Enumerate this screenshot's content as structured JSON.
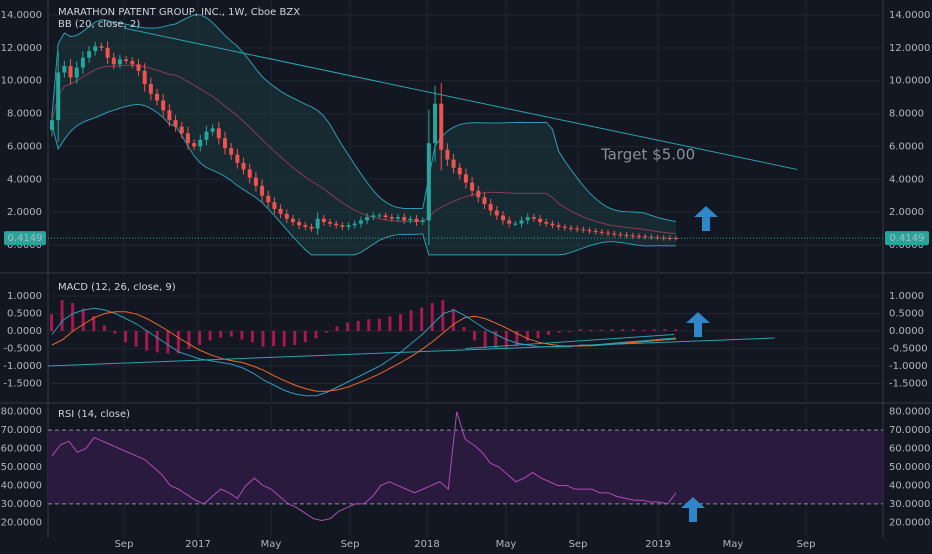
{
  "chart_data": [
    {
      "type": "candlestick",
      "title": "MARATHON PATENT GROUP, INC., 1W, Cboe BZX",
      "indicator": "BB (20, close, 2)",
      "ylim": [
        0,
        14
      ],
      "yticks": [
        "14.0000",
        "12.0000",
        "10.0000",
        "8.0000",
        "6.0000",
        "4.0000",
        "2.0000",
        "0.0000"
      ],
      "last_price": "0.4149",
      "annotation": "Target $5.00",
      "grid": true,
      "colors": {
        "up": "#26a69a",
        "down": "#ef5350",
        "bb_band": "#2e9bb4",
        "bb_basis": "#8b3a55",
        "trendline": "#2aa3b0",
        "arrow": "#2f86c8",
        "last_price_bg": "#26a69a"
      },
      "weekly_close": [
        7.6,
        10.5,
        10.9,
        10.2,
        10.8,
        11.4,
        11.8,
        12.1,
        12.0,
        11.4,
        11.0,
        11.3,
        11.2,
        11.0,
        10.6,
        9.8,
        9.2,
        8.8,
        8.2,
        7.6,
        7.2,
        6.8,
        6.2,
        6.0,
        6.4,
        6.9,
        7.1,
        6.5,
        5.9,
        5.5,
        5.0,
        4.6,
        4.1,
        3.6,
        3.0,
        2.6,
        2.2,
        1.9,
        1.6,
        1.4,
        1.2,
        1.1,
        1.0,
        1.6,
        1.4,
        1.3,
        1.2,
        1.1,
        1.2,
        1.3,
        1.5,
        1.7,
        1.8,
        1.8,
        1.7,
        1.6,
        1.7,
        1.5,
        1.6,
        1.4,
        1.5,
        6.2,
        8.6,
        5.8,
        5.2,
        4.7,
        4.3,
        3.8,
        3.3,
        2.9,
        2.5,
        2.1,
        1.8,
        1.5,
        1.3,
        1.3,
        1.5,
        1.7,
        1.6,
        1.4,
        1.3,
        1.2,
        1.1,
        1.05,
        1.0,
        0.95,
        0.9,
        0.85,
        0.8,
        0.75,
        0.7,
        0.65,
        0.62,
        0.58,
        0.55,
        0.52,
        0.5,
        0.47,
        0.45,
        0.43,
        0.42,
        0.4149
      ]
    },
    {
      "type": "line",
      "title": "MACD (12, 26, close, 9)",
      "ylim": [
        -2.0,
        1.2
      ],
      "yticks": [
        "1.0000",
        "0.5000",
        "0.0000",
        "-0.5000",
        "-1.0000",
        "-1.5000"
      ],
      "series": [
        {
          "name": "MACD",
          "color": "#2e9bb4",
          "values": [
            -0.1,
            0.3,
            0.5,
            0.6,
            0.65,
            0.6,
            0.5,
            0.35,
            0.2,
            0.0,
            -0.2,
            -0.4,
            -0.6,
            -0.7,
            -0.8,
            -0.85,
            -0.9,
            -0.95,
            -1.05,
            -1.2,
            -1.4,
            -1.55,
            -1.7,
            -1.8,
            -1.85,
            -1.85,
            -1.75,
            -1.6,
            -1.45,
            -1.3,
            -1.15,
            -1.0,
            -0.8,
            -0.6,
            -0.35,
            -0.1,
            0.2,
            0.5,
            0.6,
            0.45,
            0.25,
            0.05,
            -0.1,
            -0.25,
            -0.35,
            -0.4,
            -0.45,
            -0.45,
            -0.45,
            -0.45,
            -0.4,
            -0.4,
            -0.38,
            -0.35,
            -0.32,
            -0.3,
            -0.28,
            -0.25,
            -0.22,
            -0.2
          ]
        },
        {
          "name": "Signal",
          "color": "#f0682a",
          "values": [
            -0.4,
            -0.25,
            0.0,
            0.2,
            0.38,
            0.5,
            0.55,
            0.55,
            0.48,
            0.35,
            0.18,
            0.0,
            -0.2,
            -0.38,
            -0.55,
            -0.68,
            -0.78,
            -0.85,
            -0.9,
            -1.0,
            -1.12,
            -1.28,
            -1.42,
            -1.55,
            -1.65,
            -1.72,
            -1.72,
            -1.68,
            -1.6,
            -1.48,
            -1.36,
            -1.22,
            -1.06,
            -0.9,
            -0.72,
            -0.52,
            -0.3,
            -0.05,
            0.2,
            0.38,
            0.42,
            0.35,
            0.22,
            0.08,
            -0.08,
            -0.22,
            -0.32,
            -0.38,
            -0.42,
            -0.43,
            -0.43,
            -0.42,
            -0.4,
            -0.38,
            -0.35,
            -0.33,
            -0.3,
            -0.28,
            -0.25,
            -0.23
          ]
        }
      ],
      "histogram_color": "#c2185b",
      "trendlines": [
        {
          "x1": 0.0,
          "y1": -1.0,
          "x2": 0.87,
          "y2": -0.2
        },
        {
          "x1": 0.5,
          "y1": -0.5,
          "x2": 0.75,
          "y2": -0.1
        }
      ]
    },
    {
      "type": "line",
      "title": "RSI (14, close)",
      "ylim": [
        18,
        82
      ],
      "yticks": [
        "80.0000",
        "70.0000",
        "60.0000",
        "50.0000",
        "40.0000",
        "30.0000",
        "20.0000"
      ],
      "bands": [
        30,
        70
      ],
      "band_fill": "#2a1a3d",
      "line_color": "#b04cb8",
      "values": [
        56,
        62,
        64,
        58,
        60,
        66,
        64,
        62,
        60,
        58,
        56,
        54,
        50,
        46,
        40,
        38,
        35,
        32,
        30,
        34,
        38,
        36,
        33,
        40,
        44,
        40,
        38,
        34,
        30,
        28,
        25,
        22,
        21,
        22,
        26,
        28,
        30,
        30,
        34,
        40,
        42,
        40,
        38,
        36,
        38,
        40,
        42,
        38,
        80,
        65,
        62,
        58,
        52,
        50,
        46,
        42,
        44,
        47,
        44,
        42,
        40,
        40,
        38,
        38,
        38,
        36,
        36,
        34,
        33,
        32,
        32,
        31,
        31,
        30,
        36
      ]
    }
  ],
  "xaxis": {
    "labels": [
      "Sep",
      "2017",
      "May",
      "Sep",
      "2018",
      "May",
      "Sep",
      "2019",
      "May",
      "Sep"
    ]
  }
}
